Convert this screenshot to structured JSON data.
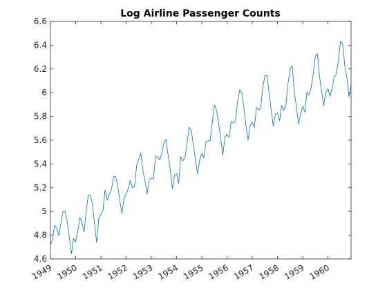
{
  "chart_data": {
    "type": "line",
    "title": "Log Airline Passenger Counts",
    "xlabel": "",
    "ylabel": "",
    "xlim": [
      1949,
      1960.9167
    ],
    "ylim": [
      4.6,
      6.6
    ],
    "grid": false,
    "box": true,
    "line_color": "#0072BD",
    "axis_color": "#262626",
    "xticks": [
      1949,
      1950,
      1951,
      1952,
      1953,
      1954,
      1955,
      1956,
      1957,
      1958,
      1959,
      1960
    ],
    "xtick_labels": [
      "1949",
      "1950",
      "1951",
      "1952",
      "1953",
      "1954",
      "1955",
      "1956",
      "1957",
      "1958",
      "1959",
      "1960"
    ],
    "yticks": [
      4.6,
      4.8,
      5,
      5.2,
      5.4,
      5.6,
      5.8,
      6,
      6.2,
      6.4,
      6.6
    ],
    "ytick_labels": [
      "4.6",
      "4.8",
      "5",
      "5.2",
      "5.4",
      "5.6",
      "5.8",
      "6",
      "6.2",
      "6.4",
      "6.6"
    ],
    "series": [
      {
        "x_start": 1949,
        "x_step": 0.083333,
        "values": [
          4.718,
          4.771,
          4.883,
          4.86,
          4.796,
          4.905,
          5.0,
          5.0,
          4.913,
          4.779,
          4.644,
          4.771,
          4.745,
          4.836,
          4.949,
          4.905,
          4.828,
          5.004,
          5.136,
          5.136,
          5.063,
          4.89,
          4.736,
          4.942,
          4.977,
          5.011,
          5.182,
          5.094,
          5.147,
          5.182,
          5.293,
          5.293,
          5.215,
          5.088,
          4.984,
          5.112,
          5.142,
          5.193,
          5.263,
          5.199,
          5.209,
          5.384,
          5.438,
          5.489,
          5.342,
          5.252,
          5.147,
          5.268,
          5.278,
          5.278,
          5.464,
          5.46,
          5.434,
          5.493,
          5.576,
          5.606,
          5.468,
          5.352,
          5.193,
          5.303,
          5.318,
          5.236,
          5.46,
          5.425,
          5.455,
          5.576,
          5.71,
          5.68,
          5.557,
          5.434,
          5.313,
          5.434,
          5.489,
          5.451,
          5.587,
          5.595,
          5.598,
          5.753,
          5.897,
          5.849,
          5.743,
          5.613,
          5.472,
          5.628,
          5.649,
          5.624,
          5.759,
          5.746,
          5.762,
          5.924,
          6.023,
          6.004,
          5.872,
          5.724,
          5.602,
          5.724,
          5.753,
          5.707,
          5.875,
          5.852,
          5.872,
          6.045,
          6.142,
          6.146,
          6.001,
          5.849,
          5.72,
          5.817,
          5.829,
          5.762,
          5.892,
          5.852,
          5.894,
          6.075,
          6.196,
          6.225,
          6.001,
          5.883,
          5.737,
          5.82,
          5.886,
          5.835,
          6.006,
          5.981,
          6.04,
          6.157,
          6.306,
          6.327,
          6.138,
          6.009,
          5.892,
          6.004,
          6.033,
          5.969,
          6.038,
          6.133,
          6.157,
          6.282,
          6.433,
          6.407,
          6.23,
          6.133,
          5.966,
          6.068
        ]
      }
    ]
  }
}
